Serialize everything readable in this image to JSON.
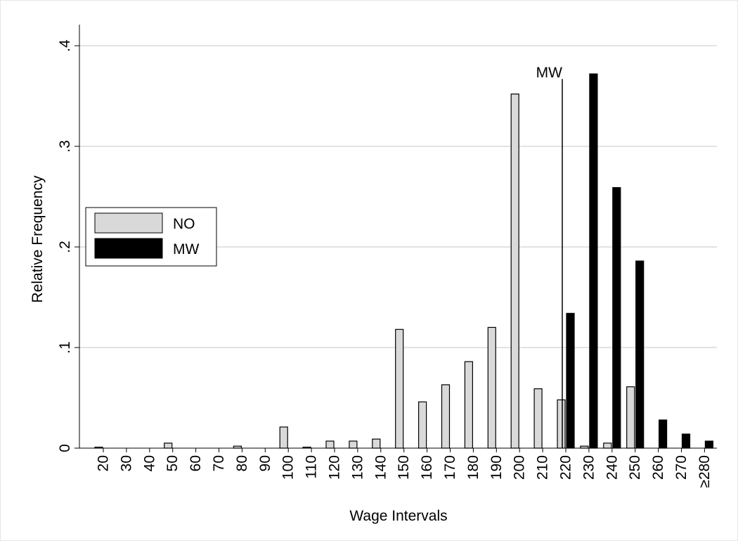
{
  "chart_data": {
    "type": "bar",
    "xlabel": "Wage Intervals",
    "ylabel": "Relative Frequency",
    "categories": [
      "20",
      "30",
      "40",
      "50",
      "60",
      "70",
      "80",
      "90",
      "100",
      "110",
      "120",
      "130",
      "140",
      "150",
      "160",
      "170",
      "180",
      "190",
      "200",
      "210",
      "220",
      "230",
      "240",
      "250",
      "260",
      "270",
      "≥280"
    ],
    "series": [
      {
        "name": "NO",
        "color": "#d9d9d9",
        "values": [
          0.001,
          0,
          0,
          0.005,
          0,
          0,
          0.002,
          0,
          0.021,
          0.001,
          0.007,
          0.007,
          0.009,
          0.118,
          0.046,
          0.063,
          0.086,
          0.12,
          0.352,
          0.059,
          0.048,
          0.002,
          0.005,
          0.061,
          0,
          0,
          0
        ]
      },
      {
        "name": "MW",
        "color": "#000000",
        "values": [
          0,
          0,
          0,
          0,
          0,
          0,
          0,
          0,
          0,
          0,
          0,
          0,
          0,
          0,
          0,
          0,
          0,
          0,
          0,
          0,
          0.134,
          0.372,
          0.259,
          0.186,
          0.028,
          0.014,
          0.007
        ]
      }
    ],
    "ylim": [
      0,
      0.4
    ],
    "yticks": [
      0,
      {
        "value": 0.1,
        "label": ".1"
      },
      {
        "value": 0.2,
        "label": ".2"
      },
      {
        "value": 0.3,
        "label": ".3"
      },
      {
        "value": 0.4,
        "label": ".4"
      }
    ],
    "grid": true,
    "legend": "left",
    "reference_line": {
      "label": "MW",
      "x": 220,
      "ymax": 0.367
    }
  }
}
